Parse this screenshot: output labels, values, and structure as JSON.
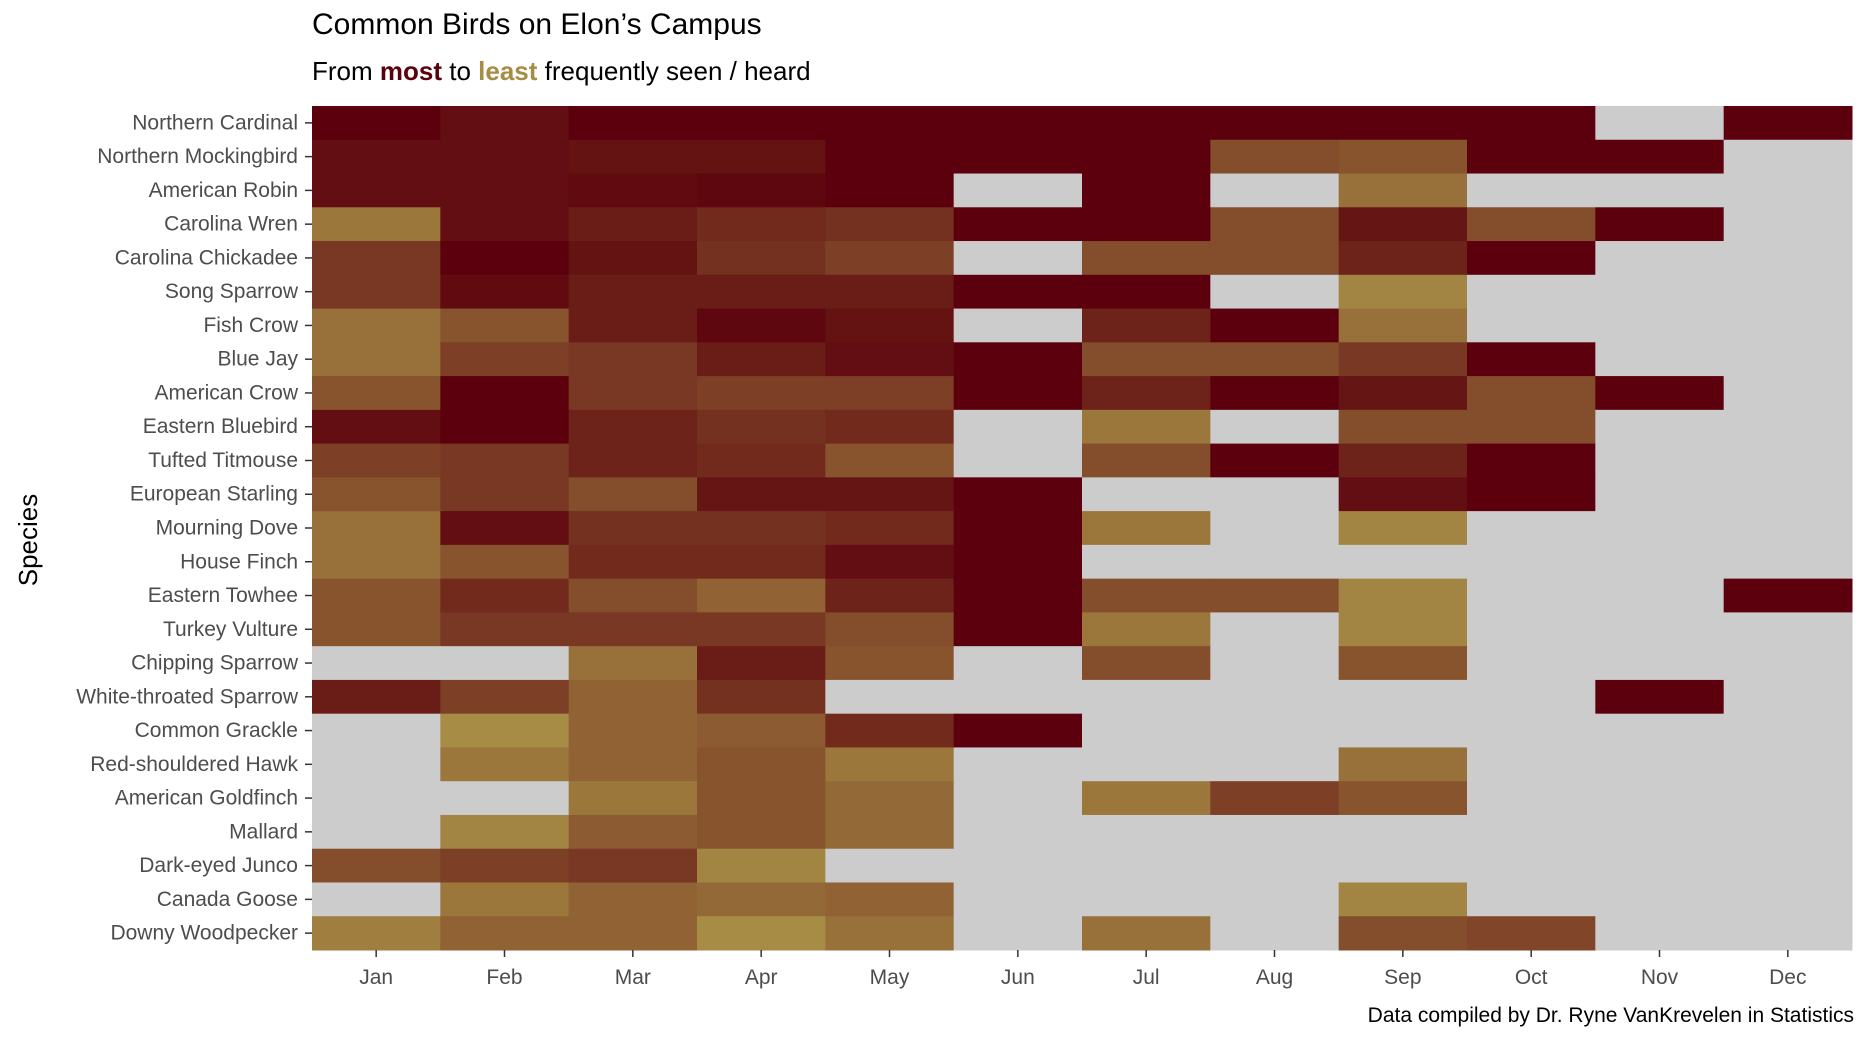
{
  "title": "Common Birds on Elon’s Campus",
  "subtitle": {
    "prefix": "From ",
    "most": "most",
    "middle": " to ",
    "least": "least",
    "suffix": " frequently seen / heard"
  },
  "caption": "Data compiled by Dr. Ryne VanKrevelen in Statistics",
  "colors": {
    "most": "#5b000c",
    "least": "#a68c45",
    "missing": "#cccccc",
    "tick": "#4d4d4d"
  },
  "chart_data": {
    "type": "heatmap",
    "ylabel": "Species",
    "xlabel": "",
    "months": [
      "Jan",
      "Feb",
      "Mar",
      "Apr",
      "May",
      "Jun",
      "Jul",
      "Aug",
      "Sep",
      "Oct",
      "Nov",
      "Dec"
    ],
    "species": [
      "Northern Cardinal",
      "Northern Mockingbird",
      "American Robin",
      "Carolina Wren",
      "Carolina Chickadee",
      "Song Sparrow",
      "Fish Crow",
      "Blue Jay",
      "American Crow",
      "Eastern Bluebird",
      "Tufted Titmouse",
      "European Starling",
      "Mourning Dove",
      "House Finch",
      "Eastern Towhee",
      "Turkey Vulture",
      "Chipping Sparrow",
      "White-throated Sparrow",
      "Common Grackle",
      "Red-shouldered Hawk",
      "American Goldfinch",
      "Mallard",
      "Dark-eyed Junco",
      "Canada Goose",
      "Downy Woodpecker"
    ],
    "scale_note": "values are relative rank within month: 0 = most frequent (dark red), 1 = least frequent (gold); null = not observed (grey)",
    "values": [
      [
        0.0,
        0.1,
        0.0,
        0.0,
        0.0,
        0.0,
        0.0,
        0.0,
        0.0,
        0.0,
        null,
        0.0
      ],
      [
        0.1,
        0.1,
        0.13,
        0.13,
        0.0,
        0.0,
        0.0,
        0.55,
        0.6,
        0.0,
        0.0,
        null
      ],
      [
        0.1,
        0.1,
        0.08,
        0.05,
        0.0,
        null,
        0.0,
        null,
        0.8,
        null,
        null,
        null
      ],
      [
        0.85,
        0.1,
        0.2,
        0.3,
        0.35,
        0.0,
        0.0,
        0.55,
        0.15,
        0.55,
        0.0,
        null
      ],
      [
        0.4,
        0.0,
        0.13,
        0.35,
        0.45,
        null,
        0.55,
        0.55,
        0.25,
        0.0,
        null,
        null
      ],
      [
        0.4,
        0.08,
        0.2,
        0.2,
        0.2,
        0.0,
        0.0,
        null,
        0.95,
        null,
        null,
        null
      ],
      [
        0.8,
        0.6,
        0.2,
        0.05,
        0.13,
        null,
        0.25,
        0.0,
        0.8,
        null,
        null,
        null
      ],
      [
        0.8,
        0.45,
        0.4,
        0.2,
        0.1,
        0.0,
        0.55,
        0.55,
        0.4,
        0.0,
        null,
        null
      ],
      [
        0.6,
        0.0,
        0.4,
        0.45,
        0.45,
        0.0,
        0.25,
        0.0,
        0.15,
        0.55,
        0.0,
        null
      ],
      [
        0.1,
        0.0,
        0.25,
        0.35,
        0.3,
        null,
        0.85,
        null,
        0.55,
        0.55,
        null,
        null
      ],
      [
        0.45,
        0.4,
        0.25,
        0.3,
        0.6,
        null,
        0.55,
        0.0,
        0.25,
        0.0,
        null,
        null
      ],
      [
        0.6,
        0.4,
        0.55,
        0.15,
        0.15,
        0.0,
        null,
        null,
        0.1,
        0.0,
        null,
        null
      ],
      [
        0.8,
        0.1,
        0.35,
        0.35,
        0.3,
        0.0,
        0.85,
        null,
        0.95,
        null,
        null,
        null
      ],
      [
        0.8,
        0.6,
        0.3,
        0.3,
        0.1,
        0.0,
        null,
        null,
        null,
        null,
        null,
        null
      ],
      [
        0.6,
        0.3,
        0.55,
        0.7,
        0.25,
        0.0,
        0.55,
        0.55,
        0.95,
        null,
        null,
        0.0
      ],
      [
        0.6,
        0.4,
        0.4,
        0.4,
        0.55,
        0.0,
        0.85,
        null,
        0.95,
        null,
        null,
        null
      ],
      [
        null,
        null,
        0.8,
        0.2,
        0.6,
        null,
        0.55,
        null,
        0.6,
        null,
        null,
        null
      ],
      [
        0.2,
        0.45,
        0.7,
        0.35,
        null,
        null,
        null,
        null,
        null,
        null,
        0.0,
        null
      ],
      [
        null,
        1.0,
        0.7,
        0.65,
        0.3,
        0.0,
        null,
        null,
        null,
        null,
        null,
        null
      ],
      [
        null,
        0.85,
        0.7,
        0.6,
        0.85,
        null,
        null,
        null,
        0.8,
        null,
        null,
        null
      ],
      [
        null,
        null,
        0.85,
        0.6,
        0.75,
        null,
        0.85,
        0.45,
        0.6,
        null,
        null,
        null
      ],
      [
        null,
        0.95,
        0.65,
        0.6,
        0.75,
        null,
        null,
        null,
        null,
        null,
        null,
        null
      ],
      [
        0.55,
        0.45,
        0.4,
        0.95,
        null,
        null,
        null,
        null,
        null,
        null,
        null,
        null
      ],
      [
        null,
        0.85,
        0.7,
        0.75,
        0.7,
        null,
        null,
        null,
        0.95,
        null,
        null,
        null
      ],
      [
        0.9,
        0.7,
        0.7,
        1.0,
        0.8,
        null,
        0.8,
        null,
        0.55,
        0.5,
        null,
        null
      ]
    ]
  }
}
